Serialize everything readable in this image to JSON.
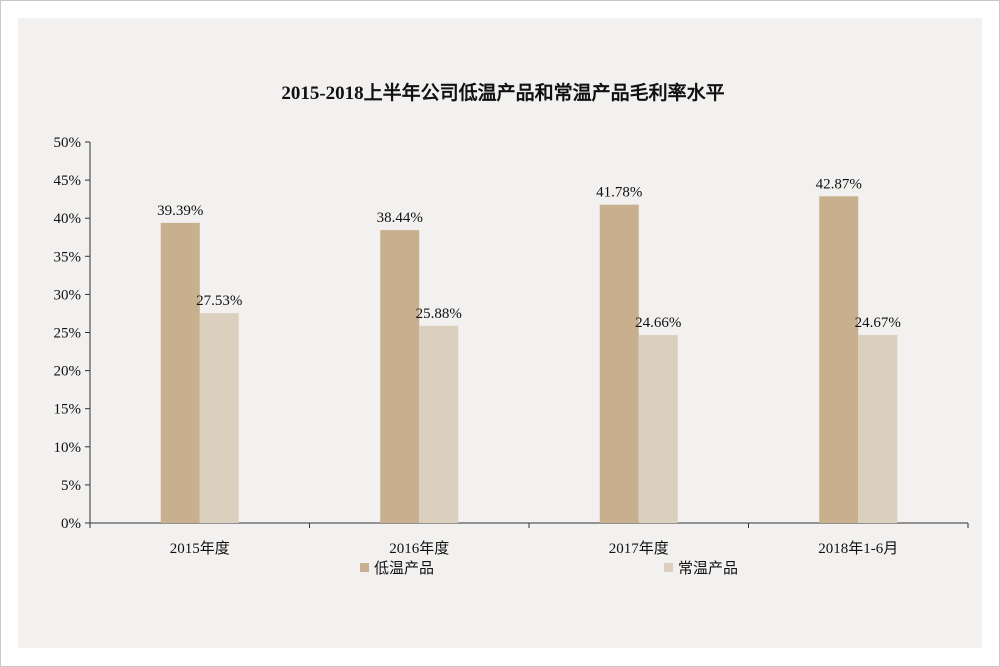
{
  "chart_data": {
    "type": "bar",
    "title": "2015-2018上半年公司低温产品和常温产品毛利率水平",
    "categories": [
      "2015年度",
      "2016年度",
      "2017年度",
      "2018年1-6月"
    ],
    "series": [
      {
        "name": "低温产品",
        "values": [
          39.39,
          38.44,
          41.78,
          42.87
        ],
        "labels": [
          "39.39%",
          "38.44%",
          "41.78%",
          "42.87%"
        ],
        "color": "#c8b08e"
      },
      {
        "name": "常温产品",
        "values": [
          27.53,
          25.88,
          24.66,
          24.67
        ],
        "labels": [
          "27.53%",
          "25.88%",
          "24.66%",
          "24.67%"
        ],
        "color": "#dbcfbd"
      }
    ],
    "ylim": [
      0,
      50
    ],
    "yticks": [
      "0%",
      "5%",
      "10%",
      "15%",
      "20%",
      "25%",
      "30%",
      "35%",
      "40%",
      "45%",
      "50%"
    ],
    "grid": false,
    "legend": "bottom"
  }
}
